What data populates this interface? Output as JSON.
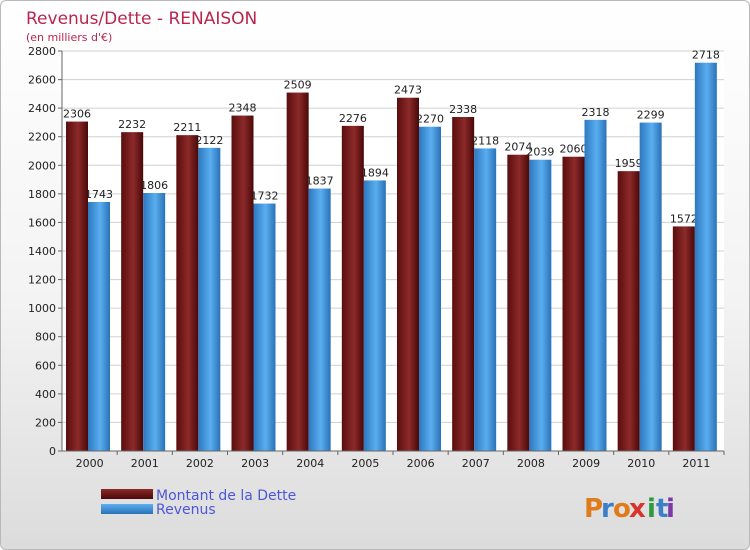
{
  "chart_data": {
    "type": "bar",
    "title": "Revenus/Dette - RENAISON",
    "subtitle": "(en milliers d'€)",
    "categories": [
      "2000",
      "2001",
      "2002",
      "2003",
      "2004",
      "2005",
      "2006",
      "2007",
      "2008",
      "2009",
      "2010",
      "2011"
    ],
    "series": [
      {
        "name": "Montant de la Dette",
        "color": "#7a1a1a",
        "values": [
          2306,
          2232,
          2211,
          2348,
          2509,
          2276,
          2473,
          2338,
          2074,
          2060,
          1959,
          1572
        ]
      },
      {
        "name": "Revenus",
        "color": "#3d8fd6",
        "values": [
          1743,
          1806,
          2122,
          1732,
          1837,
          1894,
          2270,
          2118,
          2039,
          2318,
          2299,
          2718
        ]
      }
    ],
    "ylim": [
      0,
      2800
    ],
    "yticks": [
      0,
      200,
      400,
      600,
      800,
      1000,
      1200,
      1400,
      1600,
      1800,
      2000,
      2200,
      2400,
      2600,
      2800
    ],
    "grid": true,
    "legend_position": "bottom-left"
  },
  "logo": {
    "text": "ProXiti",
    "letters": [
      "P",
      "r",
      "o",
      "x",
      "i",
      "t",
      "i"
    ],
    "colors": [
      "#e07b1a",
      "#3b7fc9",
      "#e07b1a",
      "#d9342b",
      "#2e9a3a",
      "#3b7fc9",
      "#7c3aa8"
    ]
  }
}
